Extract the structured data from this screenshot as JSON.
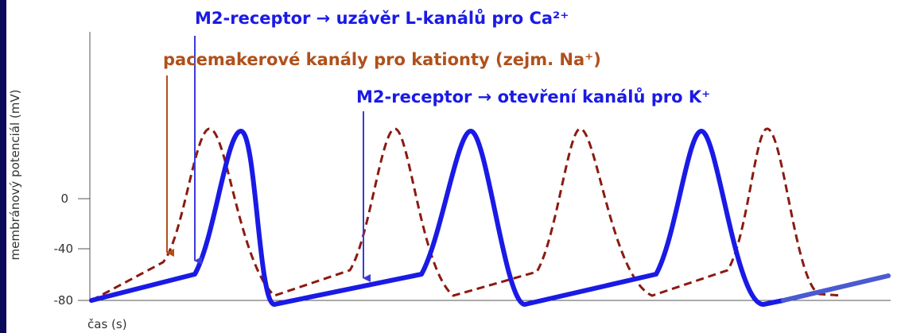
{
  "axes": {
    "y_label": "membránový potenciál (mV)",
    "x_label": "čas (s)",
    "y_ticks": [
      "0",
      "-40",
      "-80"
    ]
  },
  "annotations": {
    "ca_channels": "M2-receptor → uzávěr L-kanálů pro Ca²⁺",
    "pacemaker": "pacemakerové kanály pro kationty (zejm. Na⁺)",
    "k_channels": "M2-receptor → otevření kanálů pro K⁺"
  }
}
